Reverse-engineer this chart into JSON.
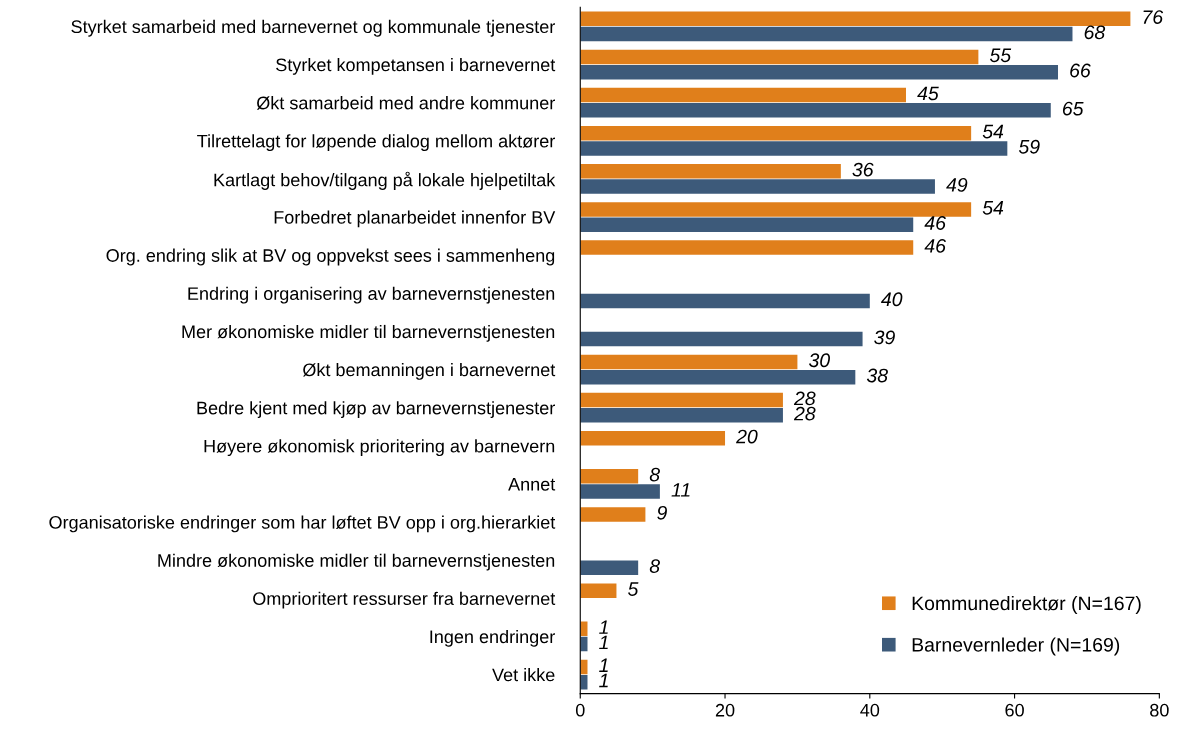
{
  "chart_data": {
    "type": "bar",
    "orientation": "horizontal",
    "categories": [
      "Styrket samarbeid med barnevernet og kommunale tjenester",
      "Styrket kompetansen i barnevernet",
      "Økt samarbeid med andre kommuner",
      "Tilrettelagt for løpende dialog mellom aktører",
      "Kartlagt behov/tilgang på lokale hjelpetiltak",
      "Forbedret planarbeidet innenfor BV",
      "Org. endring slik at BV og oppvekst sees i sammenheng",
      "Endring i organisering av barnevernstjenesten",
      "Mer økonomiske midler til barnevernstjenesten",
      "Økt bemanningen i barnevernet",
      "Bedre kjent med kjøp av barnevernstjenester",
      "Høyere økonomisk prioritering av barnevern",
      "Annet",
      "Organisatoriske endringer som har løftet BV opp i org.hierarkiet",
      "Mindre økonomiske midler til barnevernstjenesten",
      "Omprioritert ressurser fra barnevernet",
      "Ingen endringer",
      "Vet ikke"
    ],
    "series": [
      {
        "name": "Kommunedirektør (N=167)",
        "color": "#e07f1b",
        "values": [
          76,
          55,
          45,
          54,
          36,
          54,
          46,
          null,
          null,
          30,
          28,
          20,
          8,
          9,
          null,
          5,
          1,
          1
        ]
      },
      {
        "name": "Barnevernleder (N=169)",
        "color": "#3d5a7a",
        "values": [
          68,
          66,
          65,
          59,
          49,
          46,
          null,
          40,
          39,
          38,
          28,
          null,
          11,
          null,
          8,
          null,
          1,
          1
        ]
      }
    ],
    "xlim": [
      0,
      80
    ],
    "xticks": [
      0,
      20,
      40,
      60,
      80
    ],
    "data_labels": true,
    "grid": false,
    "legend": "bottom right"
  }
}
